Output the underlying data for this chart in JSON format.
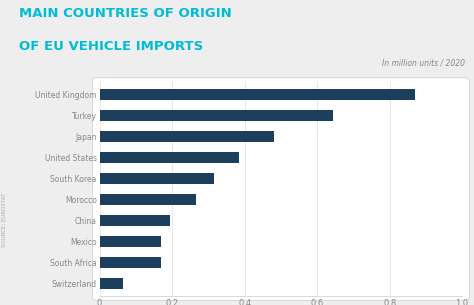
{
  "title_line1": "MAIN COUNTRIES OF ORIGIN",
  "title_line2": "OF EU VEHICLE IMPORTS",
  "subtitle": "In million units / 2020",
  "source": "SOURCE: EUROSTAT",
  "categories": [
    "United Kingdom",
    "Turkey",
    "Japan",
    "United States",
    "South Korea",
    "Morocco",
    "China",
    "Mexico",
    "South Africa",
    "Switzerland"
  ],
  "values": [
    0.87,
    0.645,
    0.48,
    0.385,
    0.315,
    0.265,
    0.195,
    0.17,
    0.17,
    0.065
  ],
  "bar_color": "#1c3f5e",
  "title_color": "#00bcd4",
  "subtitle_color": "#888888",
  "source_color": "#aaaaaa",
  "background_color": "#eeeeee",
  "chart_bg_color": "#ffffff",
  "xlim": [
    0,
    1.0
  ],
  "xticks": [
    0,
    0.2,
    0.4,
    0.6,
    0.8,
    1.0
  ]
}
